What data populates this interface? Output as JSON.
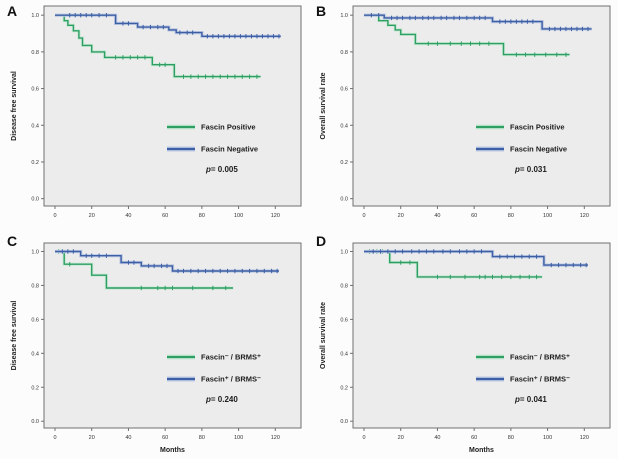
{
  "figure": {
    "background": "#fcfcfc",
    "plot_background": "#ececec",
    "frame_color": "#6f6f6f",
    "text_color": "#1c1c1c",
    "series_colors": {
      "green": "#2f9e63",
      "blue": "#3d5fa5"
    },
    "halo_colors": {
      "green": "#c9e9d6",
      "blue": "#bcc8e2"
    }
  },
  "chart_data": [
    {
      "type": "line",
      "subtype": "kaplan-meier-step",
      "panel_label": "A",
      "title": "",
      "xlabel": "",
      "ylabel": "Disease free survival",
      "xticks": [
        0,
        20,
        40,
        60,
        80,
        100,
        120
      ],
      "yticks": [
        "1.0",
        "0.8",
        "0.6",
        "0.4",
        "0.2",
        "0.0"
      ],
      "xlim": [
        -6,
        134
      ],
      "ylim": [
        -0.04,
        1.05
      ],
      "grid": false,
      "legend_position": "lower-right",
      "p_text": "p= 0.005",
      "series": [
        {
          "name": "Fascin Positive",
          "color_key": "green",
          "steps": [
            [
              0,
              1.0
            ],
            [
              5,
              0.97
            ],
            [
              7,
              0.945
            ],
            [
              10,
              0.915
            ],
            [
              13,
              0.875
            ],
            [
              15,
              0.835
            ],
            [
              20,
              0.8
            ],
            [
              27,
              0.77
            ],
            [
              53,
              0.73
            ],
            [
              65,
              0.665
            ],
            [
              112,
              0.665
            ]
          ],
          "censor_months": [
            33,
            37,
            41,
            45,
            49,
            57,
            60,
            70,
            74,
            78,
            82,
            86,
            90,
            94,
            98,
            102,
            106,
            110
          ]
        },
        {
          "name": "Fascin Negative",
          "color_key": "blue",
          "steps": [
            [
              0,
              1.0
            ],
            [
              33,
              0.955
            ],
            [
              45,
              0.935
            ],
            [
              62,
              0.92
            ],
            [
              66,
              0.905
            ],
            [
              80,
              0.885
            ],
            [
              123,
              0.885
            ]
          ],
          "censor_months": [
            8,
            11,
            14,
            17,
            20,
            24,
            28,
            37,
            40,
            48,
            52,
            56,
            59,
            68,
            72,
            75,
            83,
            86,
            89,
            92,
            95,
            98,
            101,
            104,
            107,
            110,
            113,
            116,
            119,
            122
          ]
        }
      ]
    },
    {
      "type": "line",
      "subtype": "kaplan-meier-step",
      "panel_label": "B",
      "title": "",
      "xlabel": "",
      "ylabel": "Overall survival rate",
      "xticks": [
        0,
        20,
        40,
        60,
        80,
        100,
        120
      ],
      "yticks": [
        "1.0",
        "0.8",
        "0.6",
        "0.4",
        "0.2",
        "0.0"
      ],
      "xlim": [
        -6,
        134
      ],
      "ylim": [
        -0.04,
        1.05
      ],
      "grid": false,
      "legend_position": "lower-right",
      "p_text": "p= 0.031",
      "series": [
        {
          "name": "Fascin Positive",
          "color_key": "green",
          "steps": [
            [
              0,
              1.0
            ],
            [
              8,
              0.97
            ],
            [
              13,
              0.945
            ],
            [
              17,
              0.92
            ],
            [
              20,
              0.895
            ],
            [
              28,
              0.845
            ],
            [
              76,
              0.785
            ],
            [
              112,
              0.785
            ]
          ],
          "censor_months": [
            35,
            40,
            47,
            53,
            58,
            63,
            68,
            83,
            88,
            93,
            99,
            105,
            110
          ]
        },
        {
          "name": "Fascin Negative",
          "color_key": "blue",
          "steps": [
            [
              0,
              1.0
            ],
            [
              11,
              0.985
            ],
            [
              70,
              0.965
            ],
            [
              97,
              0.925
            ],
            [
              124,
              0.925
            ]
          ],
          "censor_months": [
            4,
            8,
            15,
            18,
            21,
            25,
            28,
            32,
            35,
            38,
            42,
            45,
            49,
            52,
            56,
            60,
            63,
            66,
            74,
            77,
            80,
            83,
            86,
            89,
            92,
            101,
            104,
            107,
            110,
            113,
            116,
            119,
            122
          ]
        }
      ]
    },
    {
      "type": "line",
      "subtype": "kaplan-meier-step",
      "panel_label": "C",
      "title": "",
      "xlabel": "Months",
      "ylabel": "Disease free survival",
      "xticks": [
        0,
        20,
        40,
        60,
        80,
        100,
        120
      ],
      "yticks": [
        "1.0",
        "0.8",
        "0.6",
        "0.4",
        "0.2",
        "0.0"
      ],
      "xlim": [
        -6,
        134
      ],
      "ylim": [
        -0.04,
        1.05
      ],
      "grid": false,
      "legend_position": "lower-right",
      "p_text": "p= 0.240",
      "series": [
        {
          "name": "Fascin⁻ / BRMS⁺",
          "color_key": "green",
          "steps": [
            [
              0,
              1.0
            ],
            [
              5,
              0.925
            ],
            [
              20,
              0.86
            ],
            [
              28,
              0.785
            ],
            [
              97,
              0.785
            ]
          ],
          "censor_months": [
            2,
            8,
            47,
            56,
            60,
            64,
            75,
            86,
            93
          ]
        },
        {
          "name": "Fascin⁺ / BRMS⁻",
          "color_key": "blue",
          "steps": [
            [
              0,
              1.0
            ],
            [
              14,
              0.975
            ],
            [
              36,
              0.935
            ],
            [
              47,
              0.915
            ],
            [
              64,
              0.885
            ],
            [
              122,
              0.885
            ]
          ],
          "censor_months": [
            4,
            7,
            10,
            17,
            20,
            24,
            28,
            40,
            43,
            51,
            54,
            58,
            61,
            67,
            70,
            74,
            78,
            82,
            86,
            90,
            94,
            98,
            102,
            106,
            110,
            114,
            118,
            121
          ]
        }
      ]
    },
    {
      "type": "line",
      "subtype": "kaplan-meier-step",
      "panel_label": "D",
      "title": "",
      "xlabel": "Months",
      "ylabel": "Overall survival rate",
      "xticks": [
        0,
        20,
        40,
        60,
        80,
        100,
        120
      ],
      "yticks": [
        "1.0",
        "0.8",
        "0.6",
        "0.4",
        "0.2",
        "0.0"
      ],
      "xlim": [
        -6,
        134
      ],
      "ylim": [
        -0.04,
        1.05
      ],
      "grid": false,
      "legend_position": "lower-right",
      "p_text": "p= 0.041",
      "series": [
        {
          "name": "Fascin⁻ / BRMS⁺",
          "color_key": "green",
          "steps": [
            [
              0,
              1.0
            ],
            [
              14,
              0.935
            ],
            [
              29,
              0.85
            ],
            [
              97,
              0.85
            ]
          ],
          "censor_months": [
            3,
            7,
            10,
            20,
            25,
            40,
            47,
            55,
            63,
            66,
            70,
            75,
            80,
            85,
            90,
            94
          ]
        },
        {
          "name": "Fascin⁺ / BRMS⁻",
          "color_key": "blue",
          "steps": [
            [
              0,
              1.0
            ],
            [
              70,
              0.97
            ],
            [
              98,
              0.92
            ],
            [
              122,
              0.92
            ]
          ],
          "censor_months": [
            5,
            9,
            13,
            17,
            21,
            26,
            30,
            34,
            38,
            43,
            47,
            52,
            56,
            60,
            64,
            74,
            78,
            82,
            86,
            90,
            94,
            102,
            106,
            110,
            114,
            118,
            121
          ]
        }
      ]
    }
  ]
}
